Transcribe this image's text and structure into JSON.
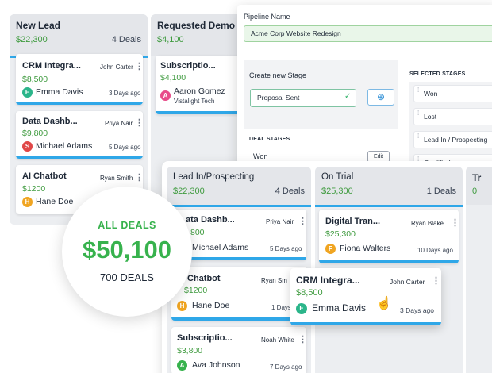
{
  "columns_back": [
    {
      "title": "New Lead",
      "amount": "$22,300",
      "count": "4 Deals"
    },
    {
      "title": "Requested Demo",
      "amount": "$4,100"
    }
  ],
  "back_cards": [
    {
      "title": "CRM Integra...",
      "amount": "$8,500",
      "owner": "John Carter",
      "person": "Emma Davis",
      "initial": "E",
      "days": "3 Days ago"
    },
    {
      "title": "Data Dashb...",
      "amount": "$9,800",
      "owner": "Priya Nair",
      "person": "Michael Adams",
      "initial": "S",
      "days": "5 Days ago"
    },
    {
      "title": "AI Chatbot",
      "amount": "$1200",
      "owner": "Ryan Smith",
      "person": "Hane Doe",
      "initial": "H"
    }
  ],
  "demo_card": {
    "title": "Subscriptio...",
    "amount": "$4,100",
    "person": "Aaron Gomez",
    "initial": "A",
    "company": "Vistalight Tech"
  },
  "modal": {
    "pipeline_label": "Pipeline Name",
    "pipeline_value": "Acme Corp Website Redesign",
    "create_stage_label": "Create new Stage",
    "stage_input": "Proposal Sent",
    "check": "✓",
    "plus": "⊕",
    "deal_stages_label": "DEAL STAGES",
    "deal_stage_won": "Won",
    "edit_label": "Edit",
    "selected_label": "SELECTED STAGES",
    "selected": [
      "Won",
      "Lost",
      "Lead In / Prospecting",
      "Qualified"
    ]
  },
  "front_columns": [
    {
      "title": "Lead In/Prospecting",
      "amount": "$22,300",
      "count": "4 Deals"
    },
    {
      "title": "On Trial",
      "amount": "$25,300",
      "count": "1 Deals"
    },
    {
      "title": "Tr",
      "amount": "0"
    }
  ],
  "front_cards": [
    {
      "title": "ata Dashb...",
      "amount": "800",
      "owner": "Priya Nair",
      "person": "Michael Adams",
      "days": "5 Days ago"
    },
    {
      "title": "Chatbot",
      "amount": "$1200",
      "owner": "Ryan Sm",
      "person": "Hane Doe",
      "initial": "H",
      "days": "1 Days"
    },
    {
      "title": "Subscriptio...",
      "amount": "$3,800",
      "owner": "Noah White",
      "person": "Ava Johnson",
      "initial": "A",
      "days": "7 Days ago"
    },
    {
      "title": "Digital Tran...",
      "amount": "$25,300",
      "owner": "Ryan Blake",
      "person": "Fiona Walters",
      "initial": "F",
      "days": "10 Days ago"
    }
  ],
  "drag_card": {
    "title": "CRM Integra...",
    "amount": "$8,500",
    "owner": "John Carter",
    "person": "Emma Davis",
    "initial": "E",
    "days": "3 Days ago"
  },
  "summary": {
    "label": "ALL DEALS",
    "amount": "$50,100",
    "deals": "700 DEALS"
  },
  "icons": {
    "kebab": "⋮",
    "grip": "⁞",
    "cursor": "☝"
  },
  "colors": {
    "accent_blue": "#2fa7e8",
    "money_green": "#3f9b3f",
    "summary_green": "#37b24d"
  }
}
